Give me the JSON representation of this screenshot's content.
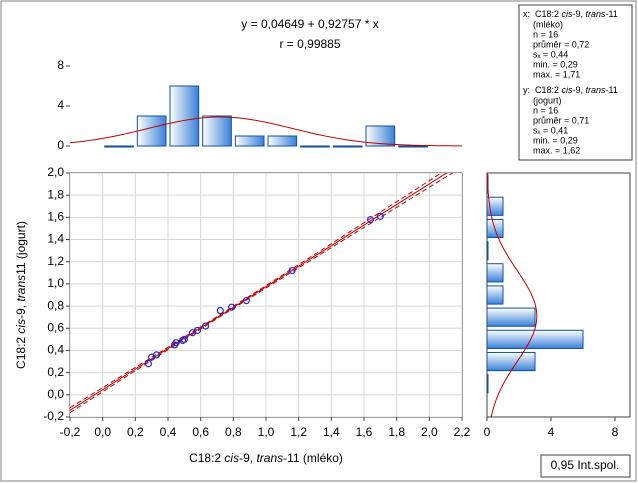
{
  "chart_data": [
    {
      "type": "scatter",
      "title": "y = 0,04649 + 0,92757 * x",
      "subtitle": "r = 0,99885",
      "x_label": [
        {
          "text": "C18:2 "
        },
        {
          "text": "cis",
          "italic": true
        },
        {
          "text": "-9, "
        },
        {
          "text": "trans",
          "italic": true
        },
        {
          "text": "-11 (mléko)"
        }
      ],
      "y_label": [
        {
          "text": "C18:2 "
        },
        {
          "text": "cis",
          "italic": true
        },
        {
          "text": "-9, "
        },
        {
          "text": "trans",
          "italic": true
        },
        {
          "text": "11 (jogurt)"
        }
      ],
      "x": [
        0.28,
        0.3,
        0.33,
        0.44,
        0.45,
        0.49,
        0.5,
        0.55,
        0.58,
        0.63,
        0.72,
        0.79,
        0.88,
        1.16,
        1.64,
        1.7
      ],
      "y": [
        0.28,
        0.34,
        0.36,
        0.45,
        0.47,
        0.49,
        0.5,
        0.56,
        0.58,
        0.62,
        0.76,
        0.79,
        0.85,
        1.12,
        1.58,
        1.61
      ],
      "color": "#2828c8",
      "fit": {
        "intercept": 0.04649,
        "slope": 0.92757,
        "color": "#c00000"
      },
      "confidence": {
        "value": 0.95,
        "label": "0,95 Int.spol."
      },
      "xlim": [
        -0.2,
        2.2
      ],
      "xticks": [
        {
          "value": -0.2,
          "label": "-0,2"
        },
        {
          "value": 0,
          "label": "0,0"
        },
        {
          "value": 0.2,
          "label": "0,2"
        },
        {
          "value": 0.4,
          "label": "0,4"
        },
        {
          "value": 0.6,
          "label": "0,6"
        },
        {
          "value": 0.8,
          "label": "0,8"
        },
        {
          "value": 1.0,
          "label": "1,0"
        },
        {
          "value": 1.2,
          "label": "1,2"
        },
        {
          "value": 1.4,
          "label": "1,4"
        },
        {
          "value": 1.6,
          "label": "1,6"
        },
        {
          "value": 1.8,
          "label": "1,8"
        },
        {
          "value": 2.0,
          "label": "2,0"
        },
        {
          "value": 2.2,
          "label": "2,2"
        }
      ],
      "ylim": [
        -0.2,
        2.0
      ],
      "yticks": [
        {
          "value": -0.2,
          "label": "-0,2"
        },
        {
          "value": 0,
          "label": "0,0"
        },
        {
          "value": 0.2,
          "label": "0,2"
        },
        {
          "value": 0.4,
          "label": "0,4"
        },
        {
          "value": 0.6,
          "label": "0,6"
        },
        {
          "value": 0.8,
          "label": "0,8"
        },
        {
          "value": 1.0,
          "label": "1,0"
        },
        {
          "value": 1.2,
          "label": "1,2"
        },
        {
          "value": 1.4,
          "label": "1,4"
        },
        {
          "value": 1.6,
          "label": "1,6"
        },
        {
          "value": 1.8,
          "label": "1,8"
        },
        {
          "value": 2.0,
          "label": "2,0"
        }
      ],
      "grid": true
    },
    {
      "type": "histogram",
      "orientation": "vertical",
      "bins": [
        0,
        0.2,
        0.4,
        0.6,
        0.8,
        1.0,
        1.2,
        1.4,
        1.6,
        1.8,
        2.0
      ],
      "values": [
        0,
        3,
        6,
        3,
        1,
        1,
        0,
        0,
        2,
        0
      ],
      "xlim": [
        -0.2,
        2.2
      ],
      "ylim": [
        0,
        8
      ],
      "yticks": [
        0,
        4,
        8
      ],
      "color": "#3a80d8",
      "curve_color": "#c00000",
      "stats": {
        "header": [
          {
            "text": "x:  C18:2 "
          },
          {
            "text": "cis",
            "italic": true
          },
          {
            "text": "-9, "
          },
          {
            "text": "trans",
            "italic": true
          },
          {
            "text": "-11"
          }
        ],
        "header2": "(mléko)",
        "n": {
          "value": 16,
          "label": "n = 16"
        },
        "mean": {
          "value": 0.72,
          "label": "průměr = 0,72"
        },
        "sd": {
          "value": 0.44,
          "label": "sₓ = 0,44"
        },
        "min": {
          "value": 0.29,
          "label": "min. = 0,29"
        },
        "max": {
          "value": 1.71,
          "label": "max. = 1,71"
        }
      }
    },
    {
      "type": "histogram",
      "orientation": "horizontal",
      "bins": [
        0,
        0.2,
        0.4,
        0.6,
        0.8,
        1.0,
        1.2,
        1.4,
        1.6,
        1.8,
        2.0
      ],
      "values": [
        0,
        3,
        6,
        3,
        1,
        1,
        0,
        1,
        1,
        0
      ],
      "ylim": [
        -0.2,
        2.0
      ],
      "xlim": [
        0,
        8
      ],
      "xticks": [
        0,
        4,
        8
      ],
      "color": "#3a80d8",
      "curve_color": "#c00000",
      "stats": {
        "header": [
          {
            "text": "y:  C18:2 "
          },
          {
            "text": "cis",
            "italic": true
          },
          {
            "text": "-9, "
          },
          {
            "text": "trans",
            "italic": true
          },
          {
            "text": "-11"
          }
        ],
        "header2": "(jogurt)",
        "n": {
          "value": 16,
          "label": "n = 16"
        },
        "mean": {
          "value": 0.71,
          "label": "průměr = 0,71"
        },
        "sd": {
          "value": 0.41,
          "label": "sₓ = 0,41"
        },
        "min": {
          "value": 0.29,
          "label": "min. = 0,29"
        },
        "max": {
          "value": 1.62,
          "label": "max. = 1,62"
        }
      }
    }
  ]
}
